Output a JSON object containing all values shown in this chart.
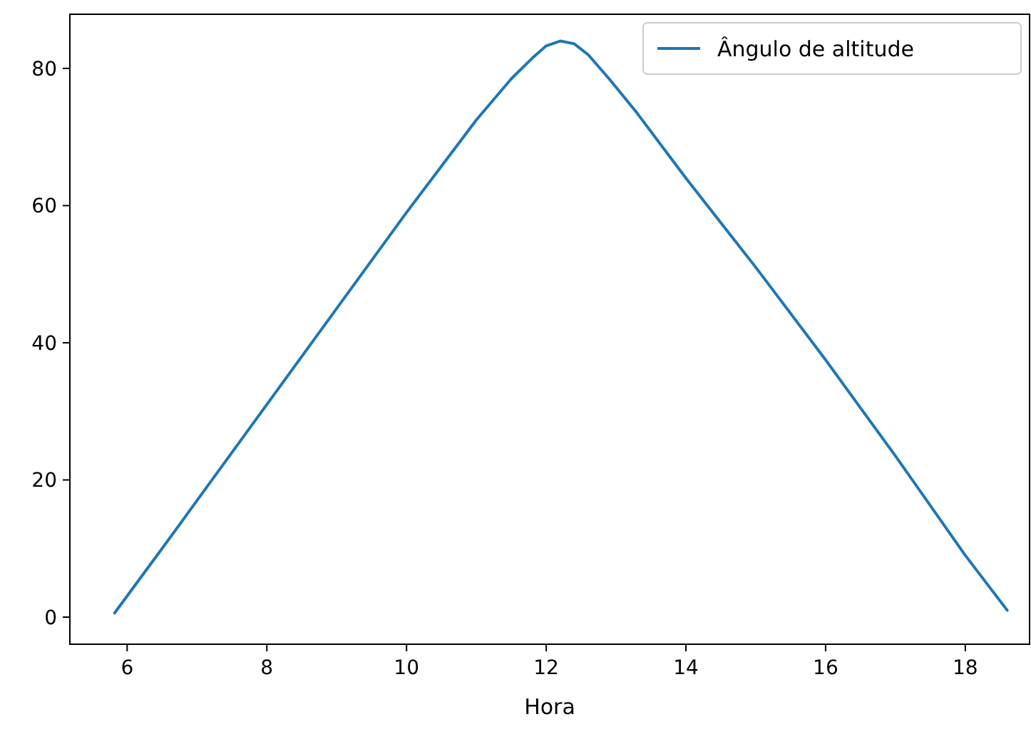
{
  "chart_data": {
    "type": "line",
    "xlabel": "Hora",
    "legend": "top right",
    "x": [
      5.82,
      6.5,
      7,
      8,
      9,
      10,
      11,
      11.5,
      11.8,
      12,
      12.2,
      12.4,
      12.6,
      12.9,
      13.3,
      14,
      15,
      16,
      17,
      18,
      18.6
    ],
    "series": [
      {
        "name": "Ângulo de altitude",
        "color": "#1f77b4",
        "values": [
          0.6,
          10,
          17,
          31,
          45,
          59,
          72.5,
          78.5,
          81.5,
          83.3,
          84,
          83.6,
          82,
          78.5,
          73.5,
          64,
          51,
          37.5,
          23.5,
          9,
          1.0
        ]
      }
    ],
    "xlim": [
      5.18,
      18.92
    ],
    "xticks": [
      6,
      8,
      10,
      12,
      14,
      16,
      18
    ],
    "ylim": [
      -3.95,
      87.9
    ],
    "yticks": [
      0,
      20,
      40,
      60,
      80
    ]
  }
}
